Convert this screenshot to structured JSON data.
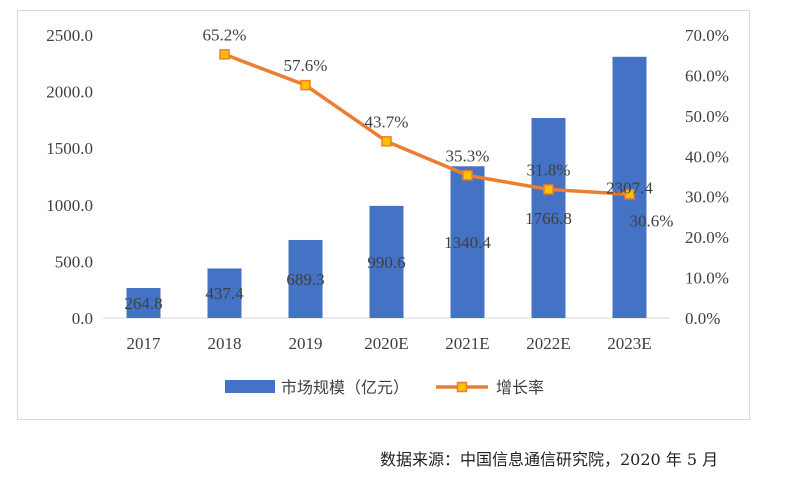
{
  "chart_data": {
    "type": "bar",
    "categories": [
      "2017",
      "2018",
      "2019",
      "2020E",
      "2021E",
      "2022E",
      "2023E"
    ],
    "series": [
      {
        "name": "市场规模（亿元）",
        "type": "bar",
        "axis": "left",
        "values": [
          264.8,
          437.4,
          689.3,
          990.6,
          1340.4,
          1766.8,
          2307.4
        ],
        "labels": [
          "264.8",
          "437.4",
          "689.3",
          "990.6",
          "1340.4",
          "1766.8",
          "2307.4"
        ]
      },
      {
        "name": "增长率",
        "type": "line",
        "axis": "right",
        "values": [
          null,
          65.2,
          57.6,
          43.7,
          35.3,
          31.8,
          30.6
        ],
        "labels": [
          "",
          "65.2%",
          "57.6%",
          "43.7%",
          "35.3%",
          "31.8%",
          "30.6%"
        ]
      }
    ],
    "y_left": {
      "min": 0,
      "max": 2500,
      "ticks": [
        "0.0",
        "500.0",
        "1000.0",
        "1500.0",
        "2000.0",
        "2500.0"
      ]
    },
    "y_right": {
      "min": 0,
      "max": 70,
      "ticks": [
        "0.0%",
        "10.0%",
        "20.0%",
        "30.0%",
        "40.0%",
        "50.0%",
        "60.0%",
        "70.0%"
      ]
    },
    "legend_position": "bottom",
    "grid": false,
    "colors": {
      "bar": "#4472C4",
      "line": "#ED7D31",
      "marker_fill": "#FFC000"
    }
  },
  "source": "数据来源：中国信息通信研究院，2020 年 5 月"
}
